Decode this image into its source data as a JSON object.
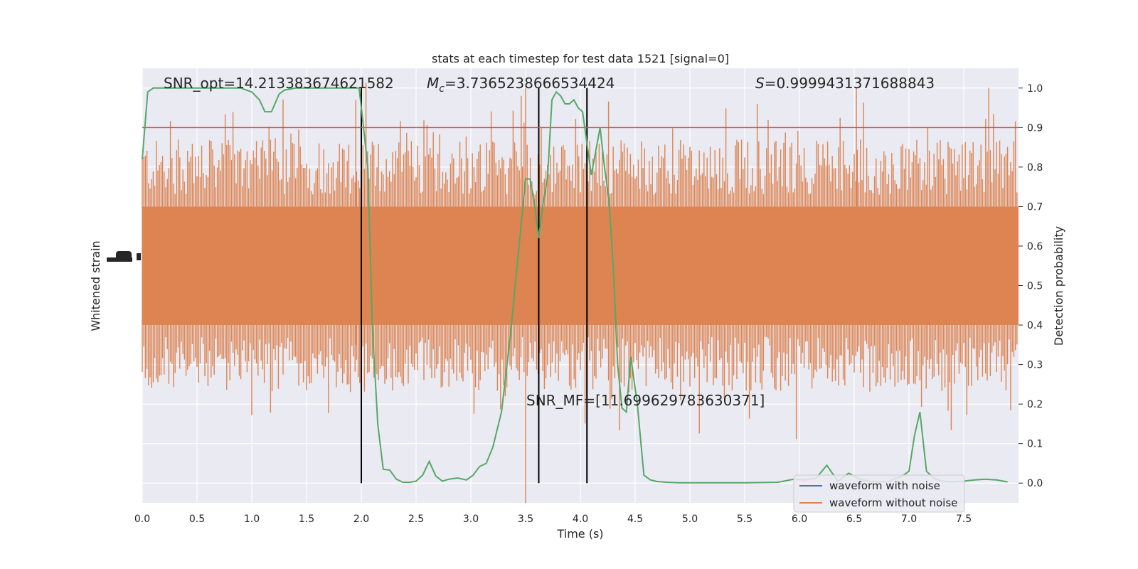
{
  "chart_data": {
    "type": "line",
    "title": "stats at each timestep for test data 1521 [signal=0]",
    "xlabel": "Time (s)",
    "ylabel_left": "Whitened strain",
    "ylabel_right": "Detection probability",
    "xlim": [
      0.0,
      8.0
    ],
    "ylim_right": [
      -0.05,
      1.05
    ],
    "x_ticks": [
      "0.0",
      "0.5",
      "1.0",
      "1.5",
      "2.0",
      "2.5",
      "3.0",
      "3.5",
      "4.0",
      "4.5",
      "5.0",
      "5.5",
      "6.0",
      "6.5",
      "7.0",
      "7.5"
    ],
    "x_tick_values": [
      0.0,
      0.5,
      1.0,
      1.5,
      2.0,
      2.5,
      3.0,
      3.5,
      4.0,
      4.5,
      5.0,
      5.5,
      6.0,
      6.5,
      7.0,
      7.5
    ],
    "y_ticks_right": [
      "0.0",
      "0.1",
      "0.2",
      "0.3",
      "0.4",
      "0.5",
      "0.6",
      "0.7",
      "0.8",
      "0.9",
      "1.0"
    ],
    "y_tick_values_right": [
      0.0,
      0.1,
      0.2,
      0.3,
      0.4,
      0.5,
      0.6,
      0.7,
      0.8,
      0.9,
      1.0
    ],
    "grid": true,
    "legend_position": "bottom-right",
    "annotations": {
      "snr_opt": "SNR_opt=14.213383674621582",
      "mc_symbol": "M",
      "mc_subscript": "c",
      "mc_value": "=3.7365238666534424",
      "s_symbol": "S",
      "s_value": "=0.9999431371688843",
      "snr_mf": "SNR_MF=[11.699629783630371]"
    },
    "threshold": 0.9,
    "vertical_lines": [
      2.0,
      3.62,
      4.06
    ],
    "series": [
      {
        "name": "waveform with noise",
        "color": "#4c72b0"
      },
      {
        "name": "waveform without noise",
        "color": "#dd8452"
      },
      {
        "color": "#55a868",
        "x": [
          0.0,
          0.05,
          0.1,
          0.2,
          0.3,
          0.5,
          0.7,
          0.9,
          1.0,
          1.07,
          1.12,
          1.18,
          1.25,
          1.3,
          1.4,
          1.5,
          1.6,
          1.7,
          1.8,
          1.9,
          1.98,
          2.02,
          2.06,
          2.1,
          2.15,
          2.2,
          2.26,
          2.32,
          2.38,
          2.44,
          2.5,
          2.56,
          2.62,
          2.68,
          2.74,
          2.8,
          2.88,
          2.96,
          3.02,
          3.08,
          3.14,
          3.2,
          3.28,
          3.36,
          3.44,
          3.5,
          3.54,
          3.58,
          3.62,
          3.66,
          3.7,
          3.74,
          3.78,
          3.82,
          3.86,
          3.9,
          3.94,
          3.98,
          4.02,
          4.06,
          4.1,
          4.14,
          4.18,
          4.22,
          4.26,
          4.3,
          4.34,
          4.38,
          4.42,
          4.46,
          4.52,
          4.58,
          4.64,
          4.7,
          4.8,
          4.9,
          5.0,
          5.2,
          5.5,
          5.8,
          5.95,
          6.05,
          6.15,
          6.25,
          6.35,
          6.45,
          6.55,
          6.65,
          6.8,
          6.95,
          7.0,
          7.05,
          7.1,
          7.16,
          7.24,
          7.3,
          7.4,
          7.5,
          7.6,
          7.7,
          7.8,
          7.9
        ],
        "y": [
          0.82,
          0.99,
          1.0,
          1.0,
          1.0,
          1.0,
          1.0,
          1.0,
          0.99,
          0.97,
          0.94,
          0.94,
          0.985,
          0.995,
          1.0,
          1.0,
          1.0,
          1.0,
          1.0,
          1.0,
          1.0,
          0.9,
          0.8,
          0.4,
          0.15,
          0.035,
          0.033,
          0.01,
          0.002,
          0.002,
          0.005,
          0.02,
          0.055,
          0.018,
          0.005,
          0.01,
          0.013,
          0.008,
          0.02,
          0.042,
          0.05,
          0.09,
          0.18,
          0.37,
          0.6,
          0.77,
          0.77,
          0.71,
          0.62,
          0.71,
          0.77,
          0.97,
          0.99,
          0.98,
          0.96,
          0.96,
          0.97,
          0.95,
          0.94,
          0.86,
          0.78,
          0.84,
          0.9,
          0.8,
          0.72,
          0.55,
          0.3,
          0.19,
          0.18,
          0.32,
          0.2,
          0.02,
          0.008,
          0.004,
          0.002,
          0.001,
          0.001,
          0.001,
          0.001,
          0.002,
          0.01,
          0.008,
          0.012,
          0.045,
          0.005,
          0.025,
          0.01,
          0.004,
          0.003,
          0.02,
          0.03,
          0.12,
          0.18,
          0.03,
          0.01,
          0.005,
          0.003,
          0.005,
          0.008,
          0.01,
          0.008,
          0.003
        ]
      },
      {
        "color": "#c44e52",
        "y": 0.9
      }
    ]
  }
}
